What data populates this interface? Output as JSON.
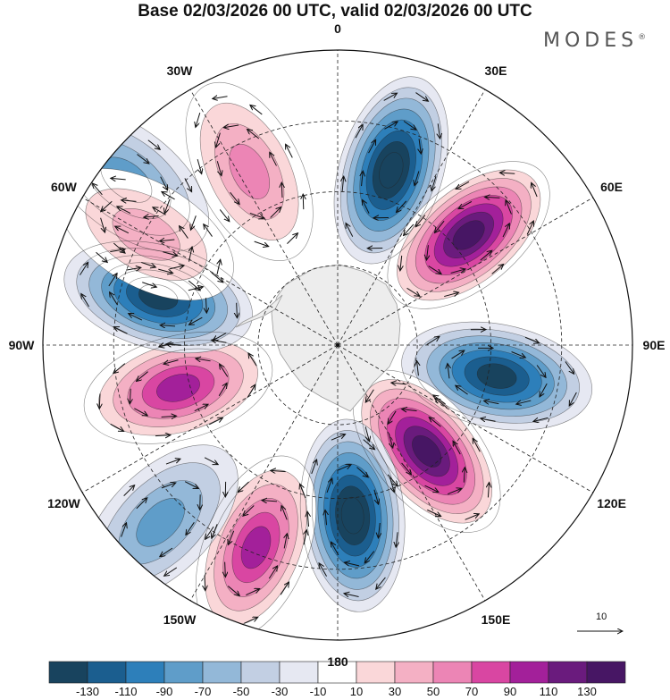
{
  "title": "Base 02/03/2026 00 UTC, valid 02/03/2026 00 UTC",
  "brand": {
    "name": "MODES",
    "mark": "®"
  },
  "longitude_labels": [
    "0",
    "30E",
    "60E",
    "90E",
    "120E",
    "150E",
    "180",
    "150W",
    "120W",
    "90W",
    "60W",
    "30W"
  ],
  "vector_reference": {
    "value": "10"
  },
  "colorbar": {
    "levels": [
      "-130",
      "-110",
      "-90",
      "-70",
      "-50",
      "-30",
      "-10",
      "10",
      "30",
      "50",
      "70",
      "90",
      "110",
      "130"
    ],
    "colors": [
      "#18435e",
      "#1b5e8f",
      "#2d7fba",
      "#5f9dc9",
      "#93b8d8",
      "#c2cfe3",
      "#e6e8f2",
      "#ffffff",
      "#fad7d9",
      "#f4b0c4",
      "#ec85b5",
      "#d946a2",
      "#a3209a",
      "#6a1b7d",
      "#471664"
    ]
  },
  "anomaly_features": [
    {
      "sign": "negative",
      "value": -130,
      "azimuth_deg": 17,
      "radius_frac": 0.62
    },
    {
      "sign": "positive",
      "value": 130,
      "azimuth_deg": 50,
      "radius_frac": 0.58
    },
    {
      "sign": "negative",
      "value": -110,
      "azimuth_deg": 101,
      "radius_frac": 0.55
    },
    {
      "sign": "positive",
      "value": 130,
      "azimuth_deg": 140,
      "radius_frac": 0.47
    },
    {
      "sign": "negative",
      "value": -130,
      "azimuth_deg": 175,
      "radius_frac": 0.58
    },
    {
      "sign": "positive",
      "value": 90,
      "azimuth_deg": 202,
      "radius_frac": 0.74
    },
    {
      "sign": "negative",
      "value": -50,
      "azimuth_deg": 225,
      "radius_frac": 0.85
    },
    {
      "sign": "positive",
      "value": 90,
      "azimuth_deg": 255,
      "radius_frac": 0.56
    },
    {
      "sign": "negative",
      "value": -110,
      "azimuth_deg": 285,
      "radius_frac": 0.63
    },
    {
      "sign": "negative",
      "value": -50,
      "azimuth_deg": 308,
      "radius_frac": 0.91
    },
    {
      "sign": "positive",
      "value": 50,
      "azimuth_deg": 333,
      "radius_frac": 0.66
    },
    {
      "sign": "positive",
      "value": 30,
      "azimuth_deg": 300,
      "radius_frac": 0.75
    }
  ]
}
